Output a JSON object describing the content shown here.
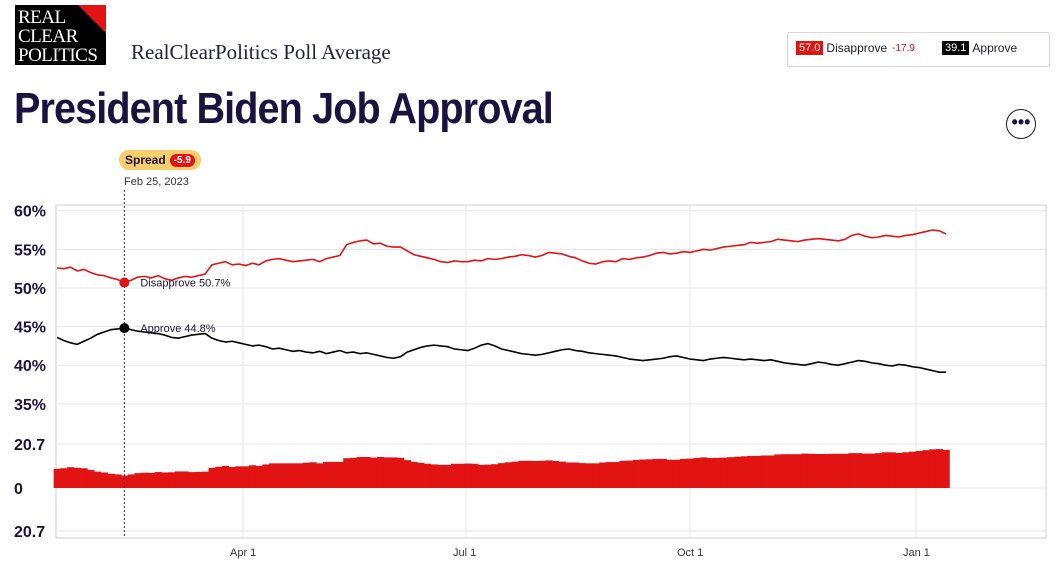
{
  "logo": {
    "line1": "REAL",
    "line2": "CLEAR",
    "line3": "POLITICS"
  },
  "brand": "RealClearPolitics Poll Average",
  "title": "President Biden Job Approval",
  "legend": {
    "disapprove": {
      "value": "57.0",
      "label": "Disapprove",
      "change": "-17.9",
      "color": "#e21313"
    },
    "approve": {
      "value": "39.1",
      "label": "Approve",
      "color": "#000000"
    }
  },
  "more_icon": "ellipsis-icon",
  "more_glyph": "•••",
  "hover": {
    "spread_label": "Spread",
    "spread_value": "-5.9",
    "date": "Feb 25, 2023",
    "disapprove_label": "Disapprove 50.7%",
    "approve_label": "Approve 44.8%"
  },
  "chart_data": {
    "type": "line",
    "x_ticks": [
      "Apr 1",
      "Jul 1",
      "Oct 1",
      "Jan 1"
    ],
    "y_ticks_upper": [
      "60%",
      "55%",
      "50%",
      "45%",
      "40%",
      "35%"
    ],
    "y_ticks_lower": [
      "20.7",
      "0",
      "20.7"
    ],
    "ylim_upper": [
      32,
      61
    ],
    "ylim_lower": [
      -20.7,
      20.7
    ],
    "grid": true,
    "series": [
      {
        "name": "Disapprove",
        "color": "#e21313",
        "values": [
          52.6,
          52.5,
          52.7,
          52.2,
          52.4,
          52.0,
          51.7,
          51.6,
          51.3,
          51.1,
          50.7,
          51.0,
          51.4,
          51.5,
          51.3,
          51.6,
          51.2,
          51.0,
          51.3,
          51.5,
          51.4,
          51.6,
          51.8,
          53.0,
          53.2,
          53.4,
          53.0,
          53.1,
          52.9,
          53.2,
          53.0,
          53.5,
          53.7,
          53.8,
          53.6,
          53.4,
          53.5,
          53.6,
          53.7,
          53.4,
          53.8,
          54.0,
          54.2,
          55.6,
          55.9,
          56.1,
          56.2,
          55.7,
          55.8,
          55.4,
          55.3,
          55.3,
          54.8,
          54.3,
          54.1,
          53.9,
          53.7,
          53.4,
          53.3,
          53.5,
          53.4,
          53.4,
          53.6,
          53.5,
          53.8,
          53.7,
          53.8,
          54.0,
          54.1,
          54.3,
          54.2,
          54.0,
          54.2,
          54.6,
          54.5,
          54.4,
          54.1,
          53.9,
          53.5,
          53.2,
          53.1,
          53.4,
          53.5,
          53.4,
          53.8,
          53.7,
          53.9,
          54.0,
          54.2,
          54.5,
          54.6,
          54.4,
          54.5,
          54.7,
          54.6,
          54.8,
          55.0,
          54.9,
          55.1,
          55.3,
          55.4,
          55.5,
          55.6,
          55.9,
          55.8,
          55.9,
          56.0,
          56.3,
          56.2,
          56.1,
          56.0,
          56.2,
          56.3,
          56.4,
          56.3,
          56.2,
          56.1,
          56.3,
          56.8,
          57.0,
          56.7,
          56.5,
          56.6,
          56.8,
          56.7,
          56.6,
          56.8,
          56.9,
          57.1,
          57.3,
          57.5,
          57.4,
          57.0
        ]
      },
      {
        "name": "Approve",
        "color": "#000000",
        "values": [
          43.6,
          43.2,
          42.9,
          42.7,
          43.1,
          43.5,
          44.0,
          44.3,
          44.6,
          44.7,
          44.8,
          44.6,
          44.4,
          44.3,
          44.2,
          44.1,
          43.9,
          43.6,
          43.5,
          43.7,
          43.9,
          44.0,
          44.1,
          43.5,
          43.2,
          43.0,
          43.1,
          42.9,
          42.7,
          42.5,
          42.6,
          42.4,
          42.1,
          42.2,
          42.0,
          41.8,
          41.9,
          41.7,
          41.6,
          41.8,
          41.5,
          41.7,
          41.9,
          41.6,
          41.7,
          41.5,
          41.6,
          41.4,
          41.2,
          41.0,
          40.9,
          41.1,
          41.7,
          42.0,
          42.3,
          42.5,
          42.6,
          42.5,
          42.4,
          42.1,
          42.0,
          41.9,
          42.2,
          42.6,
          42.8,
          42.5,
          42.1,
          41.9,
          41.7,
          41.5,
          41.4,
          41.3,
          41.4,
          41.6,
          41.8,
          42.0,
          42.1,
          41.9,
          41.8,
          41.6,
          41.5,
          41.4,
          41.3,
          41.2,
          41.0,
          40.8,
          40.7,
          40.6,
          40.7,
          40.8,
          40.9,
          41.1,
          41.2,
          41.0,
          40.8,
          40.7,
          40.6,
          40.8,
          40.9,
          41.0,
          40.9,
          40.8,
          40.7,
          40.8,
          40.7,
          40.6,
          40.7,
          40.5,
          40.3,
          40.2,
          40.1,
          40.0,
          40.2,
          40.4,
          40.3,
          40.1,
          40.0,
          40.2,
          40.4,
          40.6,
          40.5,
          40.3,
          40.2,
          40.0,
          39.9,
          40.1,
          40.0,
          39.8,
          39.7,
          39.5,
          39.3,
          39.1,
          39.1
        ]
      },
      {
        "name": "Spread",
        "color": "#e21313",
        "values": [
          -9.0,
          -9.3,
          -9.8,
          -9.5,
          -9.3,
          -8.5,
          -7.7,
          -7.3,
          -6.7,
          -6.4,
          -5.9,
          -6.4,
          -7.0,
          -7.2,
          -7.1,
          -7.5,
          -7.3,
          -7.4,
          -7.8,
          -7.8,
          -7.5,
          -7.6,
          -7.7,
          -9.5,
          -10.0,
          -10.4,
          -9.9,
          -10.2,
          -10.2,
          -10.7,
          -10.4,
          -11.1,
          -11.6,
          -11.6,
          -11.6,
          -11.6,
          -11.6,
          -11.9,
          -12.1,
          -11.6,
          -12.3,
          -12.3,
          -12.3,
          -14.0,
          -14.2,
          -14.6,
          -14.6,
          -14.3,
          -14.6,
          -14.4,
          -14.4,
          -14.2,
          -13.1,
          -12.3,
          -11.8,
          -11.4,
          -11.1,
          -10.9,
          -10.9,
          -11.4,
          -11.4,
          -11.5,
          -11.4,
          -10.9,
          -11.0,
          -11.2,
          -11.7,
          -12.1,
          -12.4,
          -12.8,
          -12.8,
          -12.7,
          -12.8,
          -13.0,
          -12.7,
          -12.4,
          -12.0,
          -12.0,
          -11.7,
          -11.6,
          -11.6,
          -12.0,
          -12.2,
          -12.2,
          -12.8,
          -12.9,
          -13.2,
          -13.4,
          -13.5,
          -13.7,
          -13.7,
          -13.3,
          -13.3,
          -13.7,
          -13.8,
          -14.1,
          -14.4,
          -14.1,
          -14.2,
          -14.3,
          -14.5,
          -14.7,
          -14.9,
          -15.1,
          -15.1,
          -15.3,
          -15.3,
          -15.8,
          -15.9,
          -15.9,
          -15.9,
          -16.2,
          -16.1,
          -16.0,
          -16.0,
          -16.1,
          -16.1,
          -16.1,
          -16.4,
          -16.4,
          -16.2,
          -16.2,
          -16.4,
          -16.8,
          -16.8,
          -16.5,
          -16.8,
          -17.1,
          -17.4,
          -17.8,
          -18.2,
          -18.3,
          -17.9
        ]
      }
    ]
  }
}
